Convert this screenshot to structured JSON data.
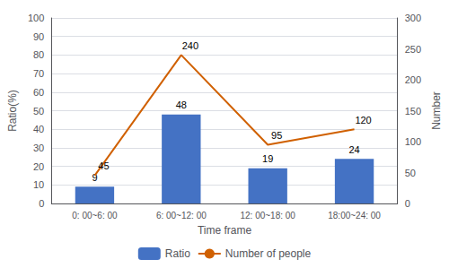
{
  "chart_data": {
    "type": "bar",
    "categories": [
      "0: 00~6: 00",
      "6: 00~12: 00",
      "12: 00~18: 00",
      "18:00~24: 00"
    ],
    "series": [
      {
        "name": "Ratio",
        "type": "bar",
        "color": "#4472C4",
        "values": [
          9,
          48,
          19,
          24
        ]
      },
      {
        "name": "Number of people",
        "type": "line",
        "color": "#D06000",
        "values": [
          45,
          240,
          95,
          120
        ],
        "axis": "y2"
      }
    ],
    "xlabel": "Time frame",
    "ylabel": "Ratio(%)",
    "y2label": "Number",
    "ylim": [
      0,
      100
    ],
    "yticks": [
      0,
      10,
      20,
      30,
      40,
      50,
      60,
      70,
      80,
      90,
      100
    ],
    "y2lim": [
      0,
      300
    ],
    "y2ticks": [
      0,
      50,
      100,
      150,
      200,
      250,
      300
    ],
    "grid": true,
    "legend": "bottom",
    "data_labels": true
  }
}
